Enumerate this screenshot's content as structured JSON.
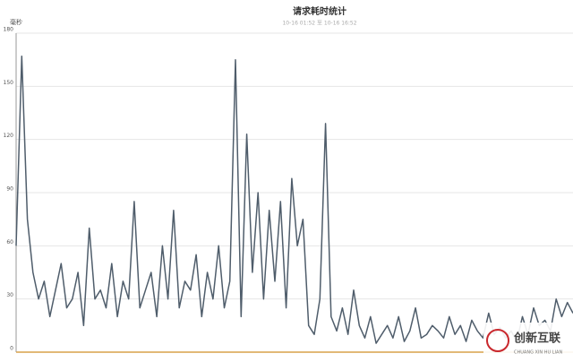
{
  "chart_data": {
    "type": "line",
    "title": "请求耗时统计",
    "subtitle": "10-16 01:52 至 10-16 16:52",
    "y_label": "毫秒",
    "categories": [
      null,
      null,
      null,
      null,
      null,
      null,
      null,
      null,
      null,
      null,
      null,
      null,
      null,
      null,
      null,
      null,
      null,
      null,
      null,
      null,
      null,
      null,
      null,
      null,
      null,
      null,
      null,
      null,
      null,
      null,
      null,
      null,
      null,
      null,
      null,
      null,
      null,
      null,
      null,
      null,
      null,
      null,
      null,
      null,
      null,
      null,
      null,
      null,
      null,
      null,
      null,
      null,
      null,
      null,
      null,
      null,
      null,
      null,
      null,
      null,
      null,
      null,
      null,
      null,
      null,
      null,
      null,
      null,
      null,
      null,
      null,
      null,
      null,
      null,
      null,
      null,
      null,
      null,
      null,
      null,
      null,
      null,
      null,
      null,
      null,
      null,
      null,
      null,
      null,
      null,
      null,
      null,
      null,
      null,
      null,
      null,
      null,
      null,
      null,
      null
    ],
    "series": [
      {
        "name": "请求耗时",
        "color": "#4f5d6b",
        "values": [
          60,
          167,
          75,
          45,
          30,
          40,
          20,
          35,
          50,
          25,
          30,
          45,
          15,
          70,
          30,
          35,
          25,
          50,
          20,
          40,
          30,
          85,
          25,
          35,
          45,
          20,
          60,
          30,
          80,
          25,
          40,
          35,
          55,
          20,
          45,
          30,
          60,
          25,
          40,
          165,
          20,
          123,
          45,
          90,
          30,
          80,
          40,
          85,
          25,
          98,
          60,
          75,
          15,
          10,
          30,
          129,
          20,
          12,
          25,
          10,
          35,
          15,
          8,
          20,
          5,
          10,
          15,
          8,
          20,
          6,
          12,
          25,
          8,
          10,
          15,
          12,
          8,
          20,
          10,
          15,
          6,
          18,
          12,
          8,
          22,
          10,
          14,
          8,
          12,
          6,
          20,
          10,
          25,
          15,
          18,
          12,
          30,
          20,
          28,
          22
        ]
      }
    ],
    "ylim": [
      0,
      180
    ],
    "yticks": [
      0,
      30,
      60,
      90,
      120,
      150,
      180
    ],
    "grid": true,
    "watermark": {
      "title": "创新互联",
      "subtitle": "CHUANG XIN HU LIAN"
    }
  }
}
